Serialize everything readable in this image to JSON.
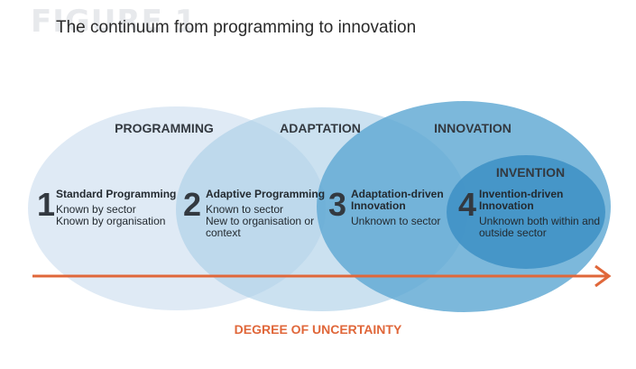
{
  "figure": {
    "watermark": "FIGURE 1",
    "title": "The continuum from programming to innovation"
  },
  "colors": {
    "programming": "#dde9f4",
    "adaptation": "#a9cde6",
    "innovation": "#5fa8d3",
    "invention": "#3d8fc4",
    "arrow": "#e0673a",
    "text": "#333940"
  },
  "circles": [
    {
      "label": "PROGRAMMING"
    },
    {
      "label": "ADAPTATION"
    },
    {
      "label": "INNOVATION"
    },
    {
      "label": "INVENTION"
    }
  ],
  "stages": [
    {
      "number": "1",
      "title_lines": [
        "Standard Programming"
      ],
      "desc_lines": [
        "Known by sector",
        "Known by organisation"
      ]
    },
    {
      "number": "2",
      "title_lines": [
        "Adaptive Programming"
      ],
      "desc_lines": [
        "Known to sector",
        "New to organisation or",
        "context"
      ]
    },
    {
      "number": "3",
      "title_lines": [
        "Adaptation-driven",
        "Innovation"
      ],
      "desc_lines": [
        "Unknown to sector"
      ]
    },
    {
      "number": "4",
      "title_lines": [
        "Invention-driven",
        "Innovation"
      ],
      "desc_lines": [
        "Unknown both within and",
        "outside sector"
      ]
    }
  ],
  "axis": {
    "label": "DEGREE OF UNCERTAINTY"
  }
}
